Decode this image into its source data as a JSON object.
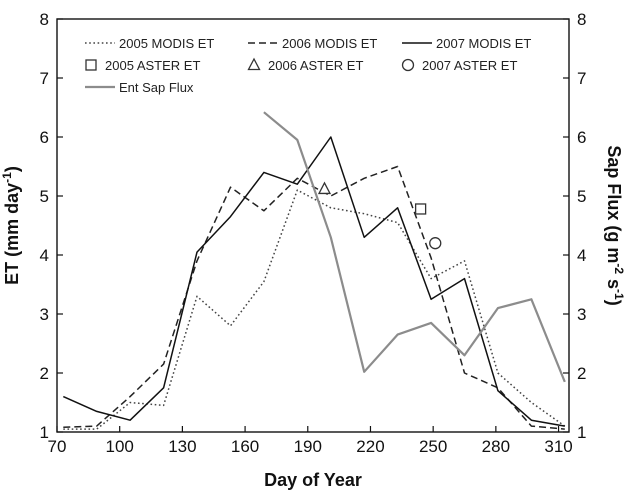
{
  "chart_data": {
    "type": "line",
    "xlabel": "Day of Year",
    "ylabel_left": "ET (mm day",
    "ylabel_left_sup": "-1",
    "ylabel_left_close": ")",
    "ylabel_right_prefix": "Sap Flux (g m",
    "ylabel_right_sup1": "-2",
    "ylabel_right_mid": " s",
    "ylabel_right_sup2": "-1",
    "ylabel_right_close": ")",
    "xlim": [
      70,
      315
    ],
    "ylim_left": [
      1,
      8
    ],
    "ylim_right": [
      1,
      8
    ],
    "xticks": [
      70,
      100,
      130,
      160,
      190,
      220,
      250,
      280,
      310
    ],
    "yticks_left": [
      1,
      2,
      3,
      4,
      5,
      6,
      7,
      8
    ],
    "yticks_right": [
      1,
      2,
      3,
      4,
      5,
      6,
      7,
      8
    ],
    "grid": false,
    "legend_position": "top",
    "series": [
      {
        "name": "2005 MODIS ET",
        "style": "dotted",
        "color": "#444444",
        "axis": "left",
        "x": [
          73,
          89,
          105,
          121,
          137,
          153,
          169,
          185,
          201,
          217,
          233,
          249,
          265,
          281,
          297,
          313
        ],
        "y": [
          1.05,
          1.05,
          1.5,
          1.45,
          3.3,
          2.8,
          3.55,
          5.1,
          4.8,
          4.7,
          4.55,
          3.6,
          3.9,
          2.0,
          1.5,
          1.1
        ]
      },
      {
        "name": "2006 MODIS ET",
        "style": "dashed",
        "color": "#222222",
        "axis": "left",
        "x": [
          73,
          89,
          105,
          121,
          137,
          153,
          169,
          185,
          201,
          217,
          233,
          249,
          265,
          281,
          297,
          313
        ],
        "y": [
          1.08,
          1.1,
          1.6,
          2.15,
          3.9,
          5.15,
          4.75,
          5.3,
          5.0,
          5.3,
          5.5,
          3.95,
          2.0,
          1.75,
          1.1,
          1.05
        ]
      },
      {
        "name": "2007 MODIS ET",
        "style": "solid",
        "color": "#111111",
        "axis": "left",
        "x": [
          73,
          89,
          105,
          121,
          137,
          153,
          169,
          185,
          201,
          217,
          233,
          249,
          265,
          281,
          297,
          313
        ],
        "y": [
          1.6,
          1.35,
          1.2,
          1.75,
          4.05,
          4.65,
          5.4,
          5.2,
          6.0,
          4.3,
          4.8,
          3.25,
          3.6,
          1.7,
          1.2,
          1.1
        ]
      },
      {
        "name": "Ent Sap Flux",
        "style": "solid",
        "color": "#8c8c8c",
        "axis": "right",
        "x": [
          169,
          185,
          201,
          217,
          233,
          249,
          265,
          281,
          297,
          313
        ],
        "y": [
          6.42,
          5.95,
          4.3,
          2.02,
          2.65,
          2.85,
          2.3,
          3.1,
          3.25,
          1.85
        ]
      }
    ],
    "points": [
      {
        "name": "2005 ASTER ET",
        "marker": "square",
        "x": 244,
        "y": 4.78
      },
      {
        "name": "2006 ASTER ET",
        "marker": "triangle",
        "x": 198,
        "y": 5.12
      },
      {
        "name": "2007 ASTER ET",
        "marker": "circle",
        "x": 251,
        "y": 4.2
      }
    ],
    "legend": [
      {
        "label": "2005 MODIS ET",
        "kind": "line",
        "style": "dotted",
        "color": "#444444"
      },
      {
        "label": "2006 MODIS ET",
        "kind": "line",
        "style": "dashed",
        "color": "#222222"
      },
      {
        "label": "2007 MODIS ET",
        "kind": "line",
        "style": "solid",
        "color": "#111111"
      },
      {
        "label": "2005 ASTER ET",
        "kind": "marker",
        "marker": "square",
        "color": "#333333"
      },
      {
        "label": "2006 ASTER ET",
        "kind": "marker",
        "marker": "triangle",
        "color": "#333333"
      },
      {
        "label": "2007 ASTER ET",
        "kind": "marker",
        "marker": "circle",
        "color": "#333333"
      },
      {
        "label": "Ent Sap Flux",
        "kind": "line",
        "style": "solid",
        "color": "#8c8c8c"
      }
    ]
  }
}
